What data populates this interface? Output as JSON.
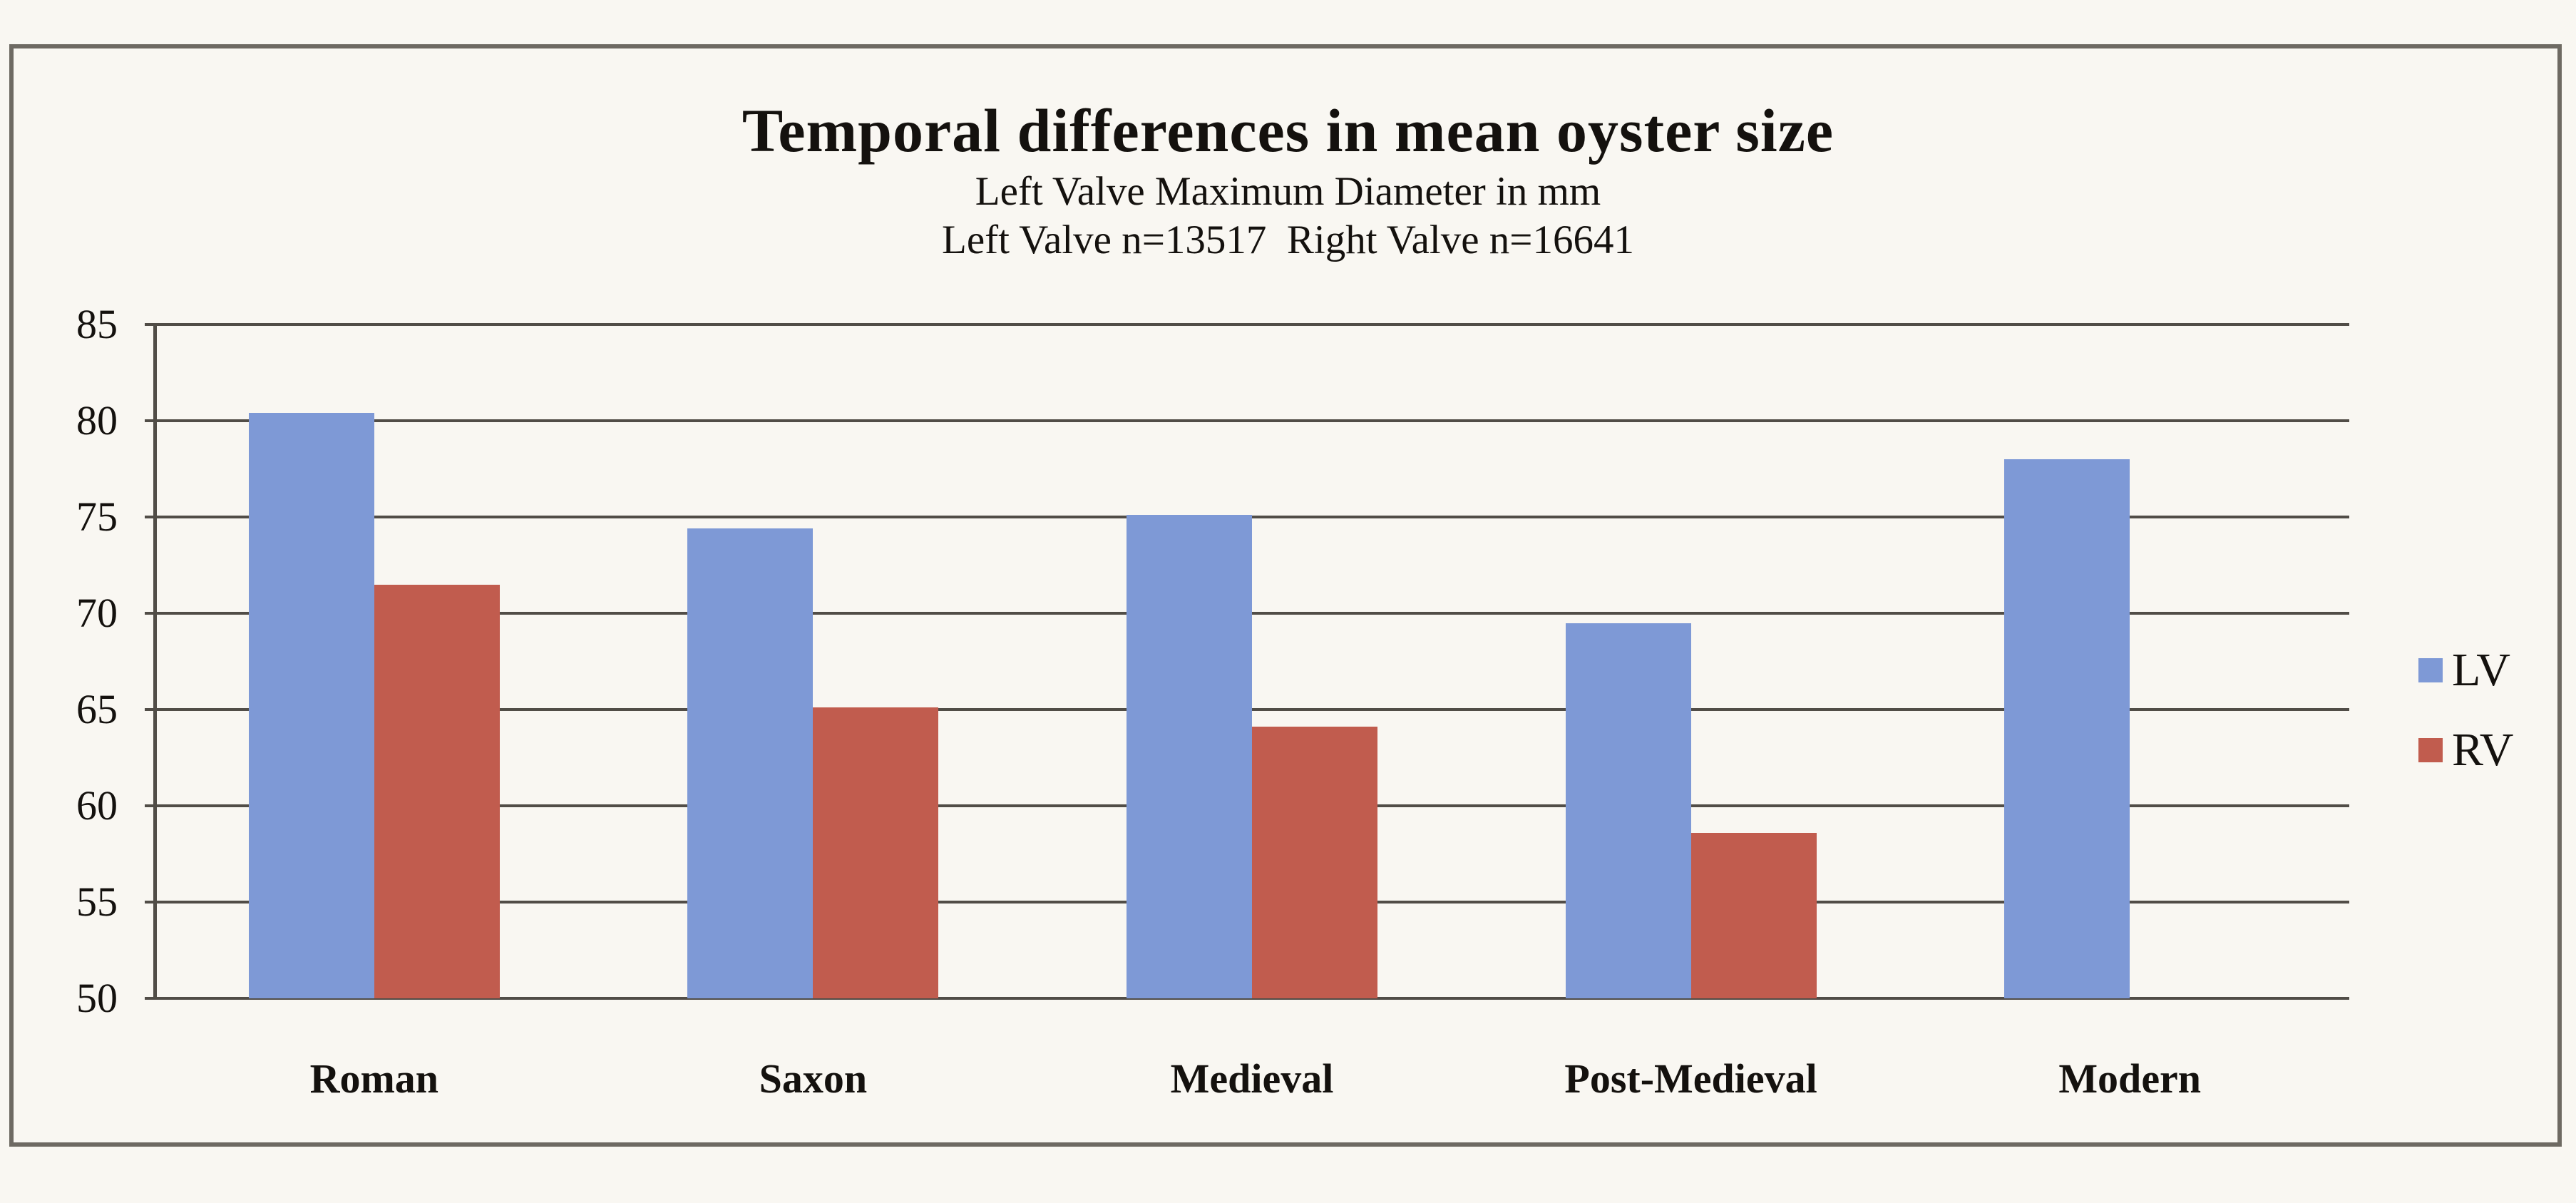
{
  "header": {
    "title": "Temporal differences in mean oyster size",
    "subtitle1": "Left Valve Maximum Diameter in mm",
    "subtitle2": "Left Valve n=13517  Right Valve n=16641"
  },
  "legend": {
    "items": [
      {
        "label": "LV",
        "color": "#7e99d6"
      },
      {
        "label": "RV",
        "color": "#c15c4e"
      }
    ]
  },
  "chart_data": {
    "type": "bar",
    "title": "Temporal differences in mean oyster size",
    "subtitle": "Left Valve Maximum Diameter in mm",
    "note": "Left Valve n=13517  Right Valve n=16641",
    "categories": [
      "Roman",
      "Saxon",
      "Medieval",
      "Post-Medieval",
      "Modern"
    ],
    "series": [
      {
        "name": "LV",
        "color": "#7e99d6",
        "values": [
          80.4,
          74.4,
          75.1,
          69.5,
          78.0
        ]
      },
      {
        "name": "RV",
        "color": "#c15c4e",
        "values": [
          71.5,
          65.1,
          64.1,
          58.6,
          null
        ]
      }
    ],
    "ylabel": "",
    "xlabel": "",
    "ylim": [
      50,
      85
    ],
    "ytick_step": 5,
    "grid": "horizontal",
    "legend_position": "right",
    "axis_color": "#514d47",
    "text_color": "#14110e"
  }
}
